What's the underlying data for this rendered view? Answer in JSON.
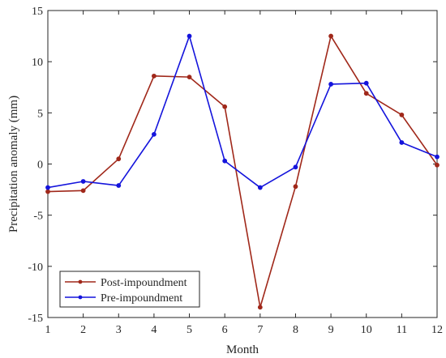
{
  "chart_data": {
    "type": "line",
    "title": "",
    "xlabel": "Month",
    "ylabel": "Precipitation anomaly (mm)",
    "x": [
      1,
      2,
      3,
      4,
      5,
      6,
      7,
      8,
      9,
      10,
      11,
      12
    ],
    "xlim": [
      1,
      12
    ],
    "ylim": [
      -15,
      15
    ],
    "xticks": [
      "1",
      "2",
      "3",
      "4",
      "5",
      "6",
      "7",
      "8",
      "9",
      "10",
      "11",
      "12"
    ],
    "yticks": [
      "-15",
      "-10",
      "-5",
      "0",
      "5",
      "10",
      "15"
    ],
    "grid": false,
    "legend_position": "bottom-left",
    "series": [
      {
        "name": "Post-impoundment",
        "color": "#A0281A",
        "values": [
          -2.7,
          -2.6,
          0.5,
          8.6,
          8.5,
          5.6,
          -14.0,
          -2.2,
          12.5,
          6.9,
          4.8,
          -0.1
        ]
      },
      {
        "name": "Pre-impoundment",
        "color": "#1414DC",
        "values": [
          -2.3,
          -1.7,
          -2.1,
          2.9,
          12.5,
          0.3,
          -2.3,
          -0.3,
          7.8,
          7.9,
          2.1,
          0.7
        ]
      }
    ]
  }
}
